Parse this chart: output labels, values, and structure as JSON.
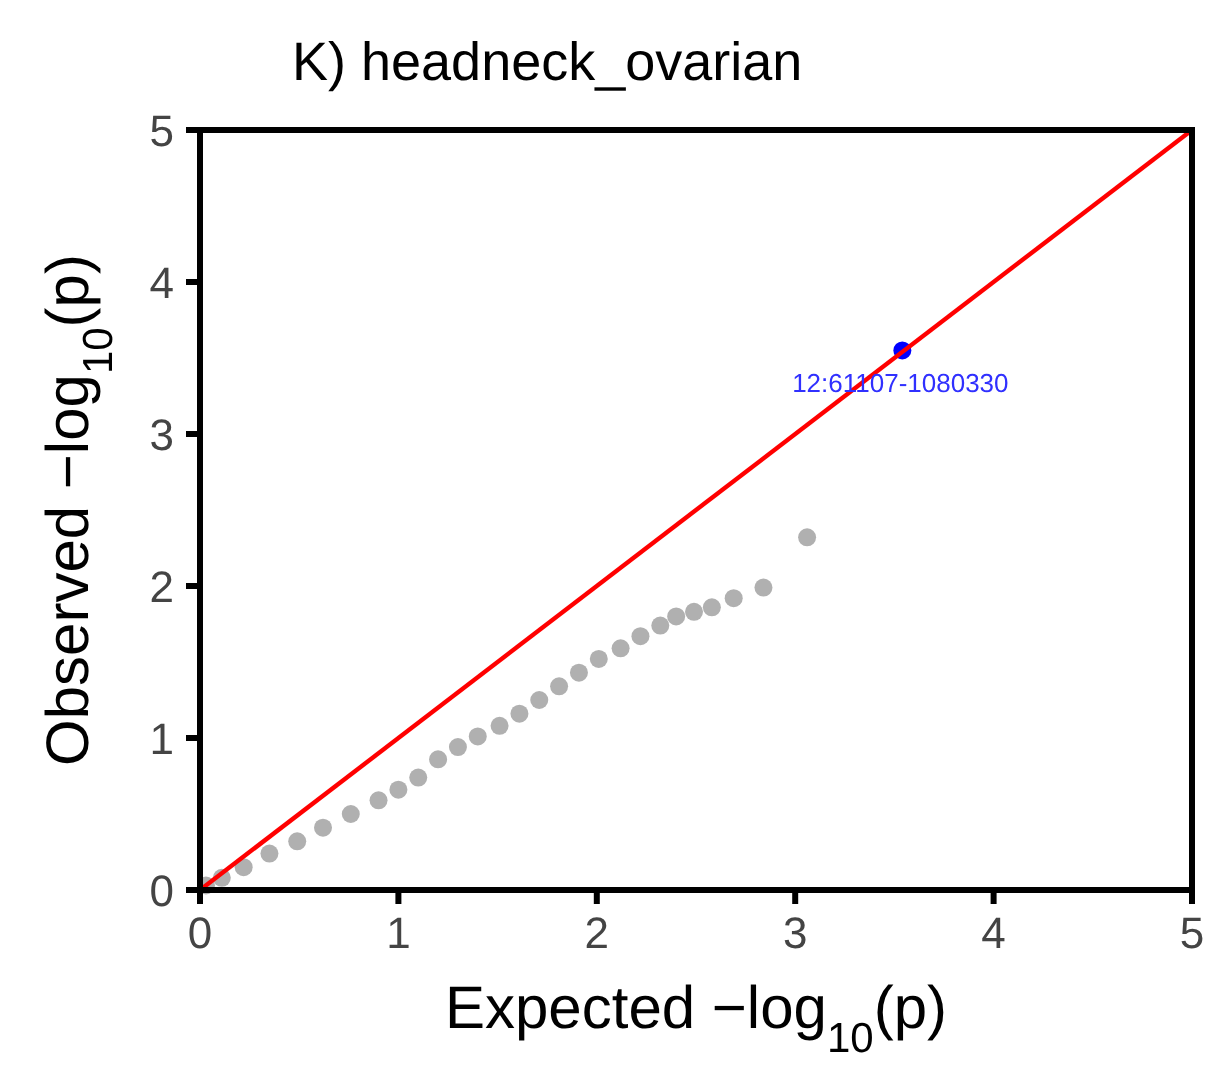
{
  "chart_data": {
    "type": "scatter",
    "title": "K) headneck_ovarian",
    "xlabel": "Expected  −log$_{10}$(p)",
    "ylabel": "Observed  −log$_{10}$(p)",
    "xlim": [
      0,
      5
    ],
    "ylim": [
      0,
      5
    ],
    "xticks": [
      0,
      1,
      2,
      3,
      4,
      5
    ],
    "yticks": [
      0,
      1,
      2,
      3,
      4,
      5
    ],
    "grid": false,
    "marker": "circle",
    "series": [
      {
        "color": "#b0b0b0",
        "x": [
          0.03,
          0.11,
          0.22,
          0.35,
          0.49,
          0.62,
          0.76,
          0.9,
          1.0,
          1.1,
          1.2,
          1.3,
          1.4,
          1.51,
          1.61,
          1.71,
          1.81,
          1.91,
          2.01,
          2.12,
          2.22,
          2.32,
          2.4,
          2.49,
          2.58,
          2.69,
          2.84,
          3.06
        ],
        "values": [
          0.03,
          0.08,
          0.15,
          0.24,
          0.32,
          0.41,
          0.5,
          0.59,
          0.66,
          0.74,
          0.86,
          0.94,
          1.01,
          1.08,
          1.16,
          1.25,
          1.34,
          1.43,
          1.52,
          1.59,
          1.67,
          1.74,
          1.8,
          1.83,
          1.86,
          1.92,
          1.99,
          2.32
        ]
      },
      {
        "color": "#0000ff",
        "x": [
          3.54
        ],
        "values": [
          3.55
        ]
      },
      {
        "type": "line",
        "color": "#ff0000",
        "x": [
          0,
          5
        ],
        "values": [
          0,
          5
        ],
        "marker": "none",
        "line_style": "solid"
      }
    ],
    "annotations": [
      {
        "text": "12:61107-1080330",
        "x": 3.54,
        "y": 3.55
      }
    ]
  }
}
